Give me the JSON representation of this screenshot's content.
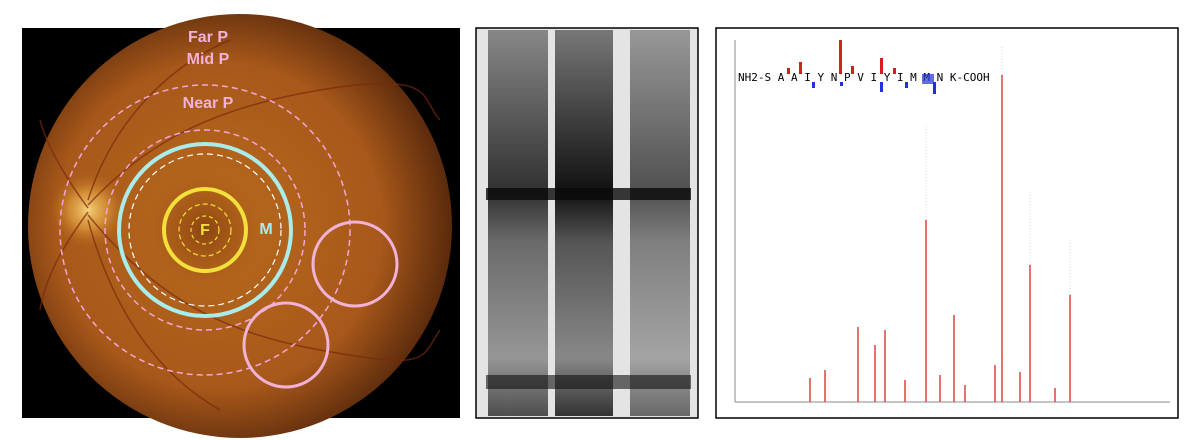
{
  "fundus": {
    "far": "Far P",
    "mid": "Mid P",
    "near": "Near P",
    "fovea": "F",
    "macula": "M"
  },
  "spectrum": {
    "sequence": "NH2-S A A I Y N P V I Y I M M N K-COOH"
  }
}
